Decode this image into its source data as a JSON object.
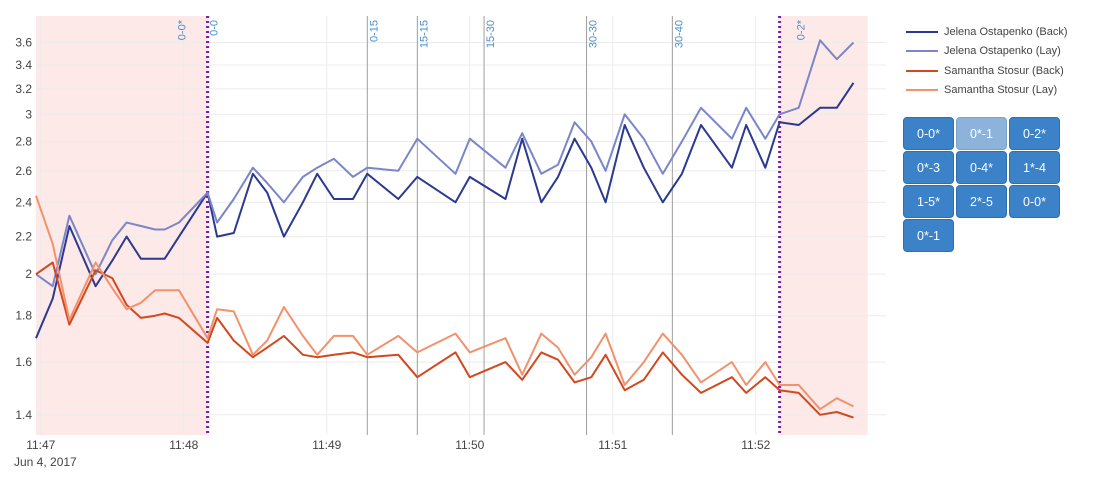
{
  "chart_data": {
    "type": "line",
    "x_axis": {
      "ticks": [
        "11:47",
        "11:48",
        "11:49",
        "11:50",
        "11:51",
        "11:52"
      ],
      "date_label": "Jun 4, 2017"
    },
    "y_axis": {
      "scale": "log",
      "ticks": [
        "1.4",
        "1.6",
        "1.8",
        "2",
        "2.2",
        "2.4",
        "2.6",
        "2.8",
        "3",
        "3.2",
        "3.4",
        "3.6"
      ],
      "range": [
        1.33,
        3.85
      ]
    },
    "grid": true,
    "legend_position": "right",
    "shaded_regions": [
      {
        "from": "11:46:58",
        "to": "11:48:10",
        "color": "#fde9e7"
      },
      {
        "from": "11:52:10",
        "to": "11:52:47",
        "color": "#fde9e7"
      }
    ],
    "markers": [
      {
        "time": "11:48:10",
        "label": "0-0*",
        "style": "dotted"
      },
      {
        "time": "11:48:10",
        "label": "0-0",
        "style": "dotted"
      },
      {
        "time": "11:52:10",
        "label": "0-2*",
        "style": "dotted"
      },
      {
        "time": "11:49:17",
        "label": "0-15",
        "style": "solid"
      },
      {
        "time": "11:49:38",
        "label": "15-15",
        "style": "solid"
      },
      {
        "time": "11:50:06",
        "label": "15-30",
        "style": "solid"
      },
      {
        "time": "11:50:49",
        "label": "30-30",
        "style": "solid"
      },
      {
        "time": "11:51:25",
        "label": "30-40",
        "style": "solid"
      }
    ],
    "series": [
      {
        "name": "Jelena Ostapenko (Back)",
        "color": "#2b3990",
        "times": [
          "11:46:58",
          "11:47:05",
          "11:47:12",
          "11:47:23",
          "11:47:30",
          "11:47:36",
          "11:47:42",
          "11:47:48",
          "11:47:52",
          "11:47:58",
          "11:48:10",
          "11:48:14",
          "11:48:21",
          "11:48:29",
          "11:48:35",
          "11:48:42",
          "11:48:50",
          "11:48:56",
          "11:49:03",
          "11:49:11",
          "11:49:17",
          "11:49:30",
          "11:49:38",
          "11:49:54",
          "11:50:00",
          "11:50:15",
          "11:50:22",
          "11:50:30",
          "11:50:37",
          "11:50:44",
          "11:50:51",
          "11:50:57",
          "11:51:05",
          "11:51:13",
          "11:51:21",
          "11:51:29",
          "11:51:37",
          "11:51:50",
          "11:51:56",
          "11:52:04",
          "11:52:10",
          "11:52:18",
          "11:52:27",
          "11:52:34",
          "11:52:41"
        ],
        "values": [
          1.7,
          1.88,
          2.26,
          1.94,
          2.07,
          2.2,
          2.08,
          2.08,
          2.08,
          2.2,
          2.46,
          2.2,
          2.22,
          2.58,
          2.46,
          2.2,
          2.4,
          2.58,
          2.42,
          2.42,
          2.58,
          2.42,
          2.56,
          2.4,
          2.56,
          2.42,
          2.82,
          2.4,
          2.56,
          2.82,
          2.62,
          2.4,
          2.92,
          2.62,
          2.4,
          2.58,
          2.92,
          2.62,
          2.92,
          2.62,
          2.94,
          2.92,
          3.05,
          3.05,
          3.25
        ]
      },
      {
        "name": "Jelena Ostapenko (Lay)",
        "color": "#7b86c9",
        "times": [
          "11:46:58",
          "11:47:05",
          "11:47:12",
          "11:47:23",
          "11:47:30",
          "11:47:36",
          "11:47:42",
          "11:47:48",
          "11:47:52",
          "11:47:58",
          "11:48:10",
          "11:48:14",
          "11:48:21",
          "11:48:29",
          "11:48:35",
          "11:48:42",
          "11:48:50",
          "11:48:56",
          "11:49:03",
          "11:49:11",
          "11:49:17",
          "11:49:30",
          "11:49:38",
          "11:49:54",
          "11:50:00",
          "11:50:15",
          "11:50:22",
          "11:50:30",
          "11:50:37",
          "11:50:44",
          "11:50:51",
          "11:50:57",
          "11:51:05",
          "11:51:13",
          "11:51:21",
          "11:51:29",
          "11:51:37",
          "11:51:50",
          "11:51:56",
          "11:52:04",
          "11:52:10",
          "11:52:18",
          "11:52:27",
          "11:52:34",
          "11:52:41"
        ],
        "values": [
          2.0,
          1.94,
          2.32,
          2.0,
          2.18,
          2.28,
          2.26,
          2.24,
          2.24,
          2.28,
          2.46,
          2.28,
          2.42,
          2.62,
          2.52,
          2.4,
          2.56,
          2.62,
          2.68,
          2.56,
          2.62,
          2.6,
          2.82,
          2.58,
          2.82,
          2.62,
          2.86,
          2.58,
          2.64,
          2.94,
          2.8,
          2.6,
          3.0,
          2.82,
          2.58,
          2.8,
          3.05,
          2.82,
          3.05,
          2.82,
          3.0,
          3.05,
          3.62,
          3.45,
          3.6
        ]
      },
      {
        "name": "Samantha Stosur (Back)",
        "color": "#d2481f",
        "times": [
          "11:46:58",
          "11:47:05",
          "11:47:12",
          "11:47:23",
          "11:47:30",
          "11:47:36",
          "11:47:42",
          "11:47:48",
          "11:47:52",
          "11:47:58",
          "11:48:10",
          "11:48:14",
          "11:48:21",
          "11:48:29",
          "11:48:35",
          "11:48:42",
          "11:48:50",
          "11:48:56",
          "11:49:03",
          "11:49:11",
          "11:49:17",
          "11:49:30",
          "11:49:38",
          "11:49:54",
          "11:50:00",
          "11:50:15",
          "11:50:22",
          "11:50:30",
          "11:50:37",
          "11:50:44",
          "11:50:51",
          "11:50:57",
          "11:51:05",
          "11:51:13",
          "11:51:21",
          "11:51:29",
          "11:51:37",
          "11:51:50",
          "11:51:56",
          "11:52:04",
          "11:52:10",
          "11:52:18",
          "11:52:27",
          "11:52:34",
          "11:52:41"
        ],
        "values": [
          2.0,
          2.06,
          1.76,
          2.02,
          1.98,
          1.85,
          1.79,
          1.8,
          1.81,
          1.79,
          1.68,
          1.79,
          1.69,
          1.62,
          1.66,
          1.71,
          1.63,
          1.62,
          1.63,
          1.64,
          1.62,
          1.63,
          1.54,
          1.64,
          1.54,
          1.6,
          1.53,
          1.64,
          1.61,
          1.52,
          1.54,
          1.63,
          1.49,
          1.53,
          1.64,
          1.55,
          1.48,
          1.54,
          1.48,
          1.54,
          1.49,
          1.48,
          1.4,
          1.41,
          1.39
        ]
      },
      {
        "name": "Samantha Stosur (Lay)",
        "color": "#f3916d",
        "times": [
          "11:46:58",
          "11:47:05",
          "11:47:12",
          "11:47:23",
          "11:47:30",
          "11:47:36",
          "11:47:42",
          "11:47:48",
          "11:47:52",
          "11:47:58",
          "11:48:10",
          "11:48:14",
          "11:48:21",
          "11:48:29",
          "11:48:35",
          "11:48:42",
          "11:48:50",
          "11:48:56",
          "11:49:03",
          "11:49:11",
          "11:49:17",
          "11:49:30",
          "11:49:38",
          "11:49:54",
          "11:50:00",
          "11:50:15",
          "11:50:22",
          "11:50:30",
          "11:50:37",
          "11:50:44",
          "11:50:51",
          "11:50:57",
          "11:51:05",
          "11:51:13",
          "11:51:21",
          "11:51:29",
          "11:51:37",
          "11:51:50",
          "11:51:56",
          "11:52:04",
          "11:52:10",
          "11:52:18",
          "11:52:27",
          "11:52:34",
          "11:52:41"
        ],
        "values": [
          2.44,
          2.16,
          1.78,
          2.06,
          1.93,
          1.83,
          1.86,
          1.92,
          1.92,
          1.92,
          1.7,
          1.83,
          1.82,
          1.63,
          1.69,
          1.84,
          1.71,
          1.63,
          1.71,
          1.71,
          1.63,
          1.71,
          1.64,
          1.72,
          1.64,
          1.7,
          1.55,
          1.72,
          1.66,
          1.55,
          1.62,
          1.72,
          1.51,
          1.6,
          1.72,
          1.63,
          1.52,
          1.6,
          1.51,
          1.6,
          1.51,
          1.51,
          1.42,
          1.46,
          1.43
        ]
      }
    ]
  },
  "set_buttons": [
    {
      "label": "0-0*",
      "active": false
    },
    {
      "label": "0*-1",
      "active": true
    },
    {
      "label": "0-2*",
      "active": false
    },
    {
      "label": "0*-3",
      "active": false
    },
    {
      "label": "0-4*",
      "active": false
    },
    {
      "label": "1*-4",
      "active": false
    },
    {
      "label": "1-5*",
      "active": false
    },
    {
      "label": "2*-5",
      "active": false
    },
    {
      "label": "0-0*",
      "active": false
    },
    {
      "label": "0*-1",
      "active": false
    }
  ]
}
